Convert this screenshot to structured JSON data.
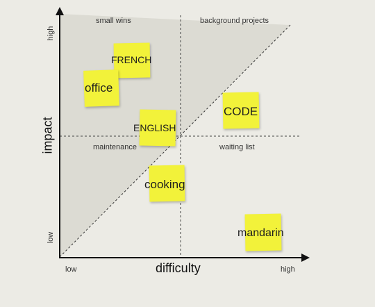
{
  "axes": {
    "x_title": "difficulty",
    "y_title": "impact",
    "x_low": "low",
    "x_high": "high",
    "y_low": "low",
    "y_high": "high"
  },
  "quadrants": {
    "top_left": "small wins",
    "top_right": "background projects",
    "bottom_left": "maintenance",
    "bottom_right": "waiting list"
  },
  "notes": [
    {
      "id": "french",
      "label": "FRENCH"
    },
    {
      "id": "office",
      "label": "office"
    },
    {
      "id": "english",
      "label": "ENGLISH"
    },
    {
      "id": "code",
      "label": "CODE"
    },
    {
      "id": "cooking",
      "label": "cooking"
    },
    {
      "id": "mandarin",
      "label": "mandarin"
    }
  ],
  "colors": {
    "background": "#ecebe5",
    "note": "#f2f23a",
    "shaded_region": "#dcdbd3",
    "axis": "#111111"
  }
}
